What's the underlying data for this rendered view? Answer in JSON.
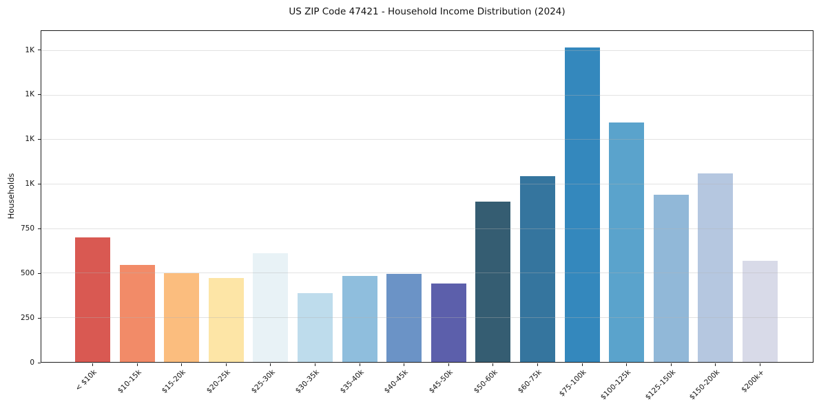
{
  "title": "US ZIP Code 47421 - Household Income Distribution (2024)",
  "chart_data": {
    "type": "bar",
    "title": "US ZIP Code 47421 - Household Income Distribution (2024)",
    "xlabel": "",
    "ylabel": "Households",
    "categories": [
      "< $10k",
      "$10-15k",
      "$15-20k",
      "$20-25k",
      "$25-30k",
      "$30-35k",
      "$35-40k",
      "$40-45k",
      "$45-50k",
      "$50-60k",
      "$60-75k",
      "$75-100k",
      "$100-125k",
      "$125-150k",
      "$150-200k",
      "$200k+"
    ],
    "values": [
      700,
      545,
      500,
      470,
      612,
      388,
      485,
      494,
      440,
      900,
      1046,
      1766,
      1347,
      941,
      1058,
      570
    ],
    "bar_colors": [
      "#d95952",
      "#f28b68",
      "#fbbd7e",
      "#fde5a6",
      "#e8f2f6",
      "#bedcec",
      "#8fbedd",
      "#6b93c6",
      "#5c5fab",
      "#355d72",
      "#35759e",
      "#3488bd",
      "#5aa3cc",
      "#91b8d8",
      "#b5c7e0",
      "#d8dae8"
    ],
    "ylim": [
      0,
      1860
    ],
    "yticks": [
      {
        "value": 0,
        "label": "0"
      },
      {
        "value": 250,
        "label": "250"
      },
      {
        "value": 500,
        "label": "500"
      },
      {
        "value": 750,
        "label": "750"
      },
      {
        "value": 1000,
        "label": "1K"
      },
      {
        "value": 1250,
        "label": "1K"
      },
      {
        "value": 1500,
        "label": "1K"
      },
      {
        "value": 1750,
        "label": "1K"
      }
    ],
    "x_tick_rotation_deg": 45,
    "grid": "horizontal gridlines drawn above bars",
    "gridline_color": "#e7e7e7",
    "spine_color": "#1a1a1a",
    "background": "#ffffff",
    "legend_position": "none"
  }
}
